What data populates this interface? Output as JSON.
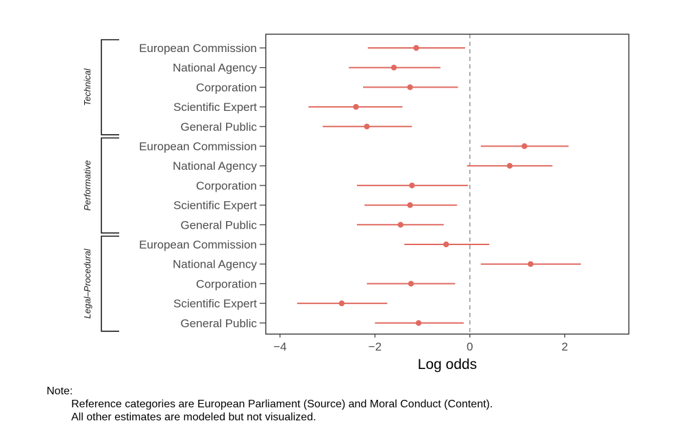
{
  "chart_data": {
    "type": "scatter",
    "subtype": "coefficient-plot",
    "xlabel": "Log odds",
    "xlim": [
      -4.3,
      3.35
    ],
    "xticks": [
      -4,
      -2,
      0,
      2
    ],
    "xtick_labels": [
      "−4",
      "−2",
      "0",
      "2"
    ],
    "reference_line": 0,
    "grid": false,
    "colors": {
      "point": "#e06a60",
      "reference_line": "#9a9a9a",
      "frame": "#333333"
    },
    "groups": [
      {
        "name": "Technical",
        "items": [
          {
            "label": "European Commission",
            "estimate": -1.13,
            "low": -2.15,
            "high": -0.1
          },
          {
            "label": "National Agency",
            "estimate": -1.6,
            "low": -2.55,
            "high": -0.62
          },
          {
            "label": "Corporation",
            "estimate": -1.26,
            "low": -2.25,
            "high": -0.25
          },
          {
            "label": "Scientific Expert",
            "estimate": -2.4,
            "low": -3.4,
            "high": -1.42
          },
          {
            "label": "General Public",
            "estimate": -2.17,
            "low": -3.1,
            "high": -1.22
          }
        ]
      },
      {
        "name": "Performative",
        "items": [
          {
            "label": "European Commission",
            "estimate": 1.15,
            "low": 0.23,
            "high": 2.08
          },
          {
            "label": "National Agency",
            "estimate": 0.84,
            "low": -0.06,
            "high": 1.74
          },
          {
            "label": "Corporation",
            "estimate": -1.22,
            "low": -2.38,
            "high": -0.04
          },
          {
            "label": "Scientific Expert",
            "estimate": -1.26,
            "low": -2.22,
            "high": -0.27
          },
          {
            "label": "General Public",
            "estimate": -1.46,
            "low": -2.38,
            "high": -0.55
          }
        ]
      },
      {
        "name": "Legal–Procedural",
        "items": [
          {
            "label": "European Commission",
            "estimate": -0.5,
            "low": -1.38,
            "high": 0.41
          },
          {
            "label": "National Agency",
            "estimate": 1.28,
            "low": 0.23,
            "high": 2.34
          },
          {
            "label": "Corporation",
            "estimate": -1.24,
            "low": -2.17,
            "high": -0.31
          },
          {
            "label": "Scientific Expert",
            "estimate": -2.7,
            "low": -3.64,
            "high": -1.74
          },
          {
            "label": "General Public",
            "estimate": -1.08,
            "low": -2.0,
            "high": -0.13
          }
        ]
      }
    ]
  },
  "note": {
    "heading": "Note:",
    "line1": "Reference categories are European Parliament (Source) and Moral Conduct (Content).",
    "line2": "All other estimates are modeled but not visualized."
  }
}
